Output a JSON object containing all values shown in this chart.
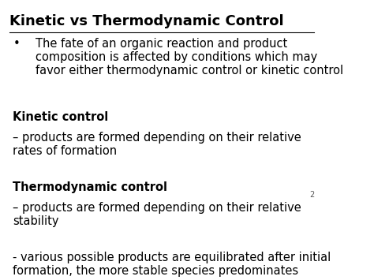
{
  "title": "Kinetic vs Thermodynamic Control",
  "background_color": "#ffffff",
  "text_color": "#000000",
  "title_fontsize": 13,
  "body_fontsize": 10.5,
  "slide_number": "2",
  "content": [
    {
      "type": "bullet",
      "text": "The fate of an organic reaction and product\ncomposition is affected by conditions which may\nfavor either thermodynamic control or kinetic control"
    },
    {
      "type": "bold_heading",
      "text": "Kinetic control"
    },
    {
      "type": "plain",
      "text": "– products are formed depending on their relative\nrates of formation"
    },
    {
      "type": "bold_heading",
      "text": "Thermodynamic control"
    },
    {
      "type": "plain",
      "text": "– products are formed depending on their relative\nstability"
    },
    {
      "type": "plain",
      "text": "- various possible products are equilibrated after initial\nformation, the more stable species predominates"
    }
  ]
}
